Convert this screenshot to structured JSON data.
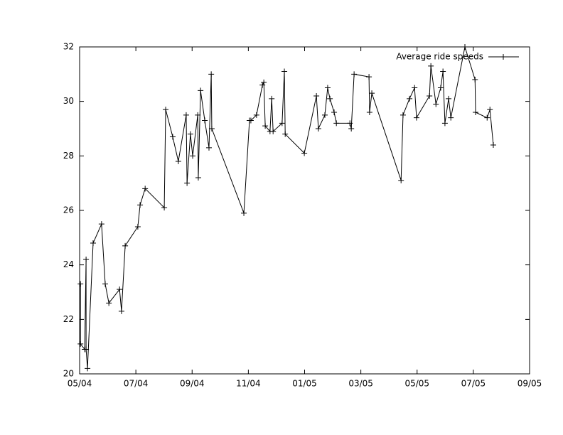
{
  "chart_data": {
    "type": "line",
    "x": [
      0.03,
      0.03,
      0.18,
      0.23,
      0.23,
      0.28,
      0.48,
      0.78,
      0.91,
      1.04,
      1.42,
      1.49,
      1.62,
      2.07,
      2.15,
      2.33,
      3.01,
      3.06,
      3.31,
      3.51,
      3.79,
      3.82,
      3.94,
      4.02,
      4.2,
      4.22,
      4.3,
      4.45,
      4.6,
      4.68,
      4.7,
      5.84,
      6.04,
      6.09,
      6.29,
      6.5,
      6.55,
      6.6,
      6.77,
      6.83,
      6.88,
      7.2,
      7.28,
      7.31,
      7.99,
      8.42,
      8.49,
      8.72,
      8.82,
      8.9,
      9.05,
      9.13,
      9.61,
      9.66,
      9.76,
      10.29,
      10.31,
      10.39,
      11.43,
      11.5,
      11.73,
      11.91,
      11.98,
      12.44,
      12.49,
      12.67,
      12.84,
      12.92,
      12.99,
      13.12,
      13.2,
      13.7,
      14.06,
      14.08,
      14.49,
      14.59,
      14.71
    ],
    "series": [
      {
        "name": "Average ride speeds",
        "color": "#000000",
        "values": [
          23.3,
          21.1,
          20.9,
          24.2,
          20.9,
          20.2,
          24.8,
          25.5,
          23.3,
          22.6,
          23.1,
          22.3,
          24.7,
          25.4,
          26.2,
          26.8,
          26.1,
          29.7,
          28.7,
          27.8,
          29.5,
          27.0,
          28.8,
          28.0,
          29.5,
          27.2,
          30.4,
          29.3,
          28.3,
          31.0,
          29.0,
          25.9,
          29.3,
          29.3,
          29.5,
          30.6,
          30.7,
          29.1,
          28.9,
          30.1,
          28.9,
          29.2,
          31.1,
          28.8,
          28.1,
          30.2,
          29.0,
          29.5,
          30.5,
          30.1,
          29.6,
          29.2,
          29.2,
          29.0,
          31.0,
          30.9,
          29.6,
          30.3,
          27.1,
          29.5,
          30.1,
          30.5,
          29.4,
          30.2,
          31.3,
          29.9,
          30.5,
          31.1,
          29.2,
          30.1,
          29.4,
          32.0,
          30.8,
          29.6,
          29.4,
          29.7,
          28.4
        ]
      }
    ],
    "xlim": [
      0,
      16
    ],
    "xticks": [
      {
        "value": 0,
        "label": "05/04"
      },
      {
        "value": 2,
        "label": "07/04"
      },
      {
        "value": 4,
        "label": "09/04"
      },
      {
        "value": 6,
        "label": "11/04"
      },
      {
        "value": 8,
        "label": "01/05"
      },
      {
        "value": 10,
        "label": "03/05"
      },
      {
        "value": 12,
        "label": "05/05"
      },
      {
        "value": 14,
        "label": "07/05"
      },
      {
        "value": 16,
        "label": "09/05"
      }
    ],
    "ylim": [
      20,
      32
    ],
    "yticks": [
      20,
      22,
      24,
      26,
      28,
      30,
      32
    ],
    "legend": "top-right"
  }
}
